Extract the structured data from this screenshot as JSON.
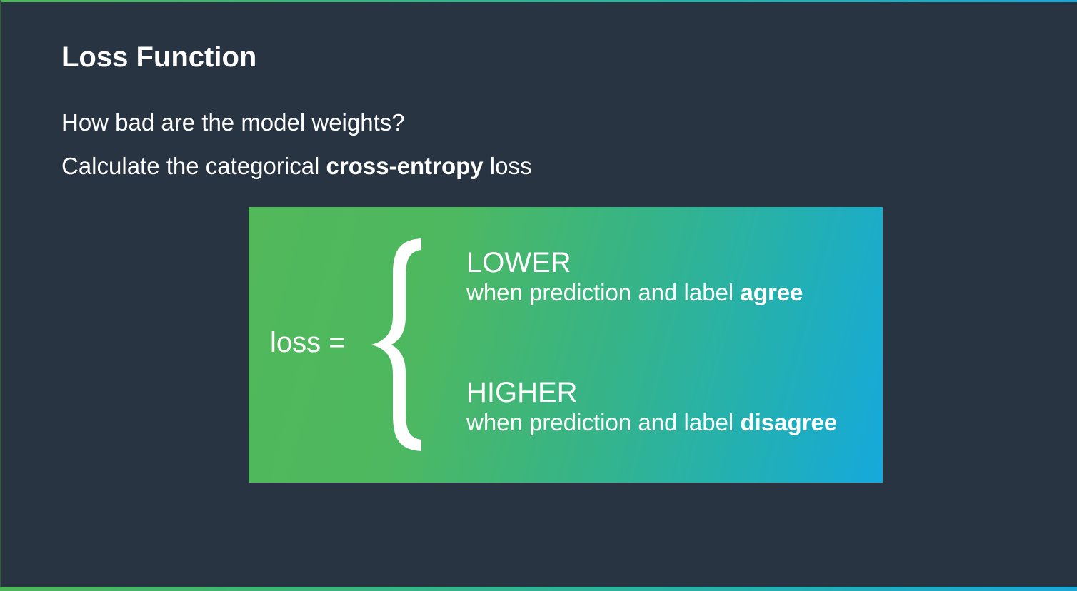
{
  "slide": {
    "title": "Loss Function",
    "line1": "How bad are the model weights?",
    "line2": {
      "prefix": "Calculate the categorical ",
      "emphasis": "cross-entropy",
      "suffix": " loss"
    }
  },
  "panel": {
    "lhs": "loss =",
    "cases": [
      {
        "heading": "LOWER",
        "text": "when prediction and label ",
        "emphasis": "agree"
      },
      {
        "heading": "HIGHER",
        "text": "when prediction and label ",
        "emphasis": "disagree"
      }
    ]
  },
  "colors": {
    "background": "#283442",
    "panel_start": "#52b85a",
    "panel_end": "#16a9dc",
    "text": "#ffffff"
  }
}
